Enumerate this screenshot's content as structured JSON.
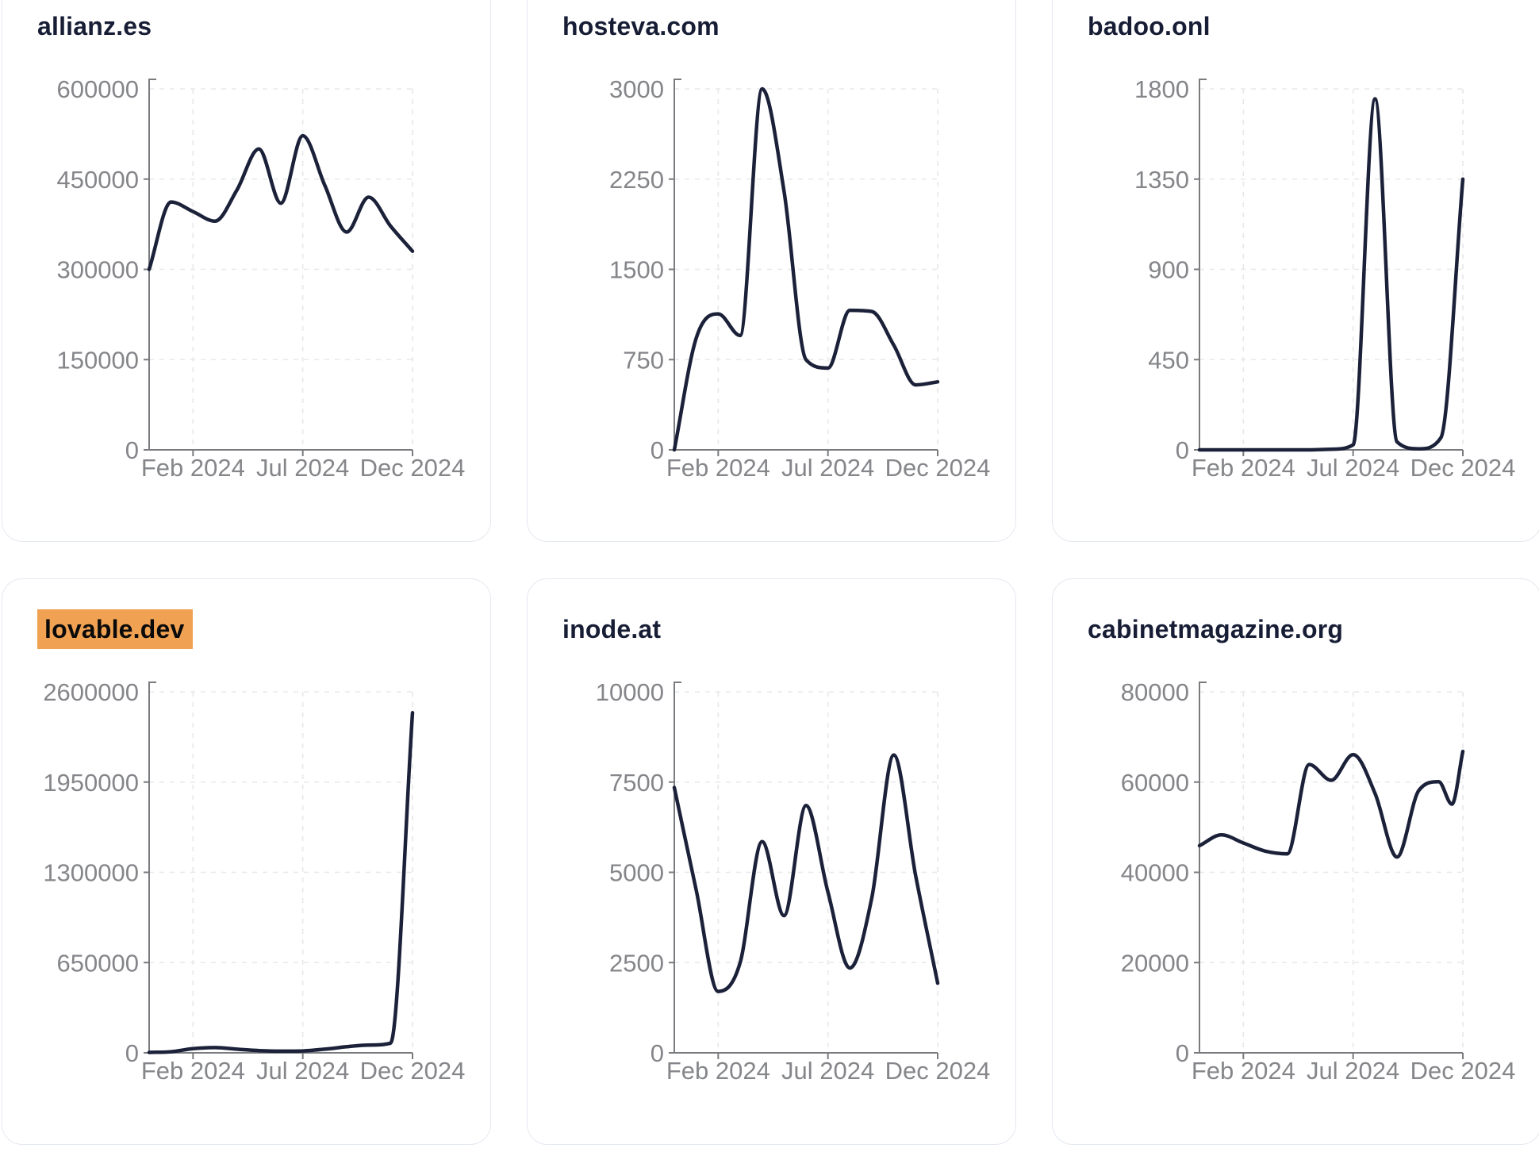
{
  "styles": {
    "line_color": "#1B2139",
    "title_color": "#171D35",
    "highlight_color": "#F0A252",
    "axis_color": "#7A7B7E",
    "tick_label_color": "#85868A",
    "gridline_color": "#E7E8EA",
    "card_border_color": "#E4E8F0",
    "background": "#ffffff"
  },
  "x_axis": {
    "start": "Dec 2023",
    "end": "Dec 2024",
    "tick_labels": [
      "Feb 2024",
      "Jul 2024",
      "Dec 2024"
    ],
    "tick_month_index": [
      2,
      7,
      12
    ],
    "x_unit": "months since Dec 2023 (0 = Dec 2023, 12 = Dec 2024)"
  },
  "chart_data": [
    {
      "type": "line",
      "title": "allianz.es",
      "highlighted": false,
      "ylim": [
        0,
        600000
      ],
      "y_ticks": [
        0,
        150000,
        300000,
        450000,
        600000
      ],
      "x_ticks": [
        "Feb 2024",
        "Jul 2024",
        "Dec 2024"
      ],
      "grid": true,
      "legend": "none",
      "points": [
        [
          0,
          300000
        ],
        [
          1,
          412000
        ],
        [
          2,
          396000
        ],
        [
          3,
          380000
        ],
        [
          4,
          432000
        ],
        [
          5,
          500000
        ],
        [
          6,
          410000
        ],
        [
          7,
          522000
        ],
        [
          8,
          440000
        ],
        [
          9,
          362000
        ],
        [
          10,
          420000
        ],
        [
          11,
          372000
        ],
        [
          12,
          330000
        ]
      ]
    },
    {
      "type": "line",
      "title": "hosteva.com",
      "highlighted": false,
      "ylim": [
        0,
        3000
      ],
      "y_ticks": [
        0,
        750,
        1500,
        2250,
        3000
      ],
      "x_ticks": [
        "Feb 2024",
        "Jul 2024",
        "Dec 2024"
      ],
      "grid": true,
      "legend": "none",
      "points": [
        [
          0,
          0
        ],
        [
          1,
          930
        ],
        [
          2,
          1130
        ],
        [
          3,
          950
        ],
        [
          4,
          3000
        ],
        [
          5,
          2150
        ],
        [
          6,
          750
        ],
        [
          7,
          680
        ],
        [
          8,
          1160
        ],
        [
          9,
          1150
        ],
        [
          10,
          870
        ],
        [
          11,
          540
        ],
        [
          12,
          565
        ]
      ]
    },
    {
      "type": "line",
      "title": "badoo.onl",
      "highlighted": false,
      "ylim": [
        0,
        1800
      ],
      "y_ticks": [
        0,
        450,
        900,
        1350,
        1800
      ],
      "x_ticks": [
        "Feb 2024",
        "Jul 2024",
        "Dec 2024"
      ],
      "grid": true,
      "legend": "none",
      "points": [
        [
          0,
          0
        ],
        [
          1,
          0
        ],
        [
          2,
          0
        ],
        [
          3,
          0
        ],
        [
          4,
          0
        ],
        [
          5,
          0
        ],
        [
          6,
          3
        ],
        [
          7,
          25
        ],
        [
          8,
          1750
        ],
        [
          9,
          40
        ],
        [
          10,
          5
        ],
        [
          11,
          60
        ],
        [
          12,
          1350
        ]
      ]
    },
    {
      "type": "line",
      "title": "lovable.dev",
      "highlighted": true,
      "ylim": [
        0,
        2600000
      ],
      "y_ticks": [
        0,
        650000,
        1300000,
        1950000,
        2600000
      ],
      "x_ticks": [
        "Feb 2024",
        "Jul 2024",
        "Dec 2024"
      ],
      "grid": true,
      "legend": "none",
      "points": [
        [
          0,
          3000
        ],
        [
          1,
          8000
        ],
        [
          2,
          30000
        ],
        [
          3,
          38000
        ],
        [
          4,
          26000
        ],
        [
          5,
          16000
        ],
        [
          6,
          12000
        ],
        [
          7,
          14000
        ],
        [
          8,
          26000
        ],
        [
          9,
          44000
        ],
        [
          10,
          56000
        ],
        [
          11,
          70000
        ],
        [
          12,
          2450000
        ]
      ]
    },
    {
      "type": "line",
      "title": "inode.at",
      "highlighted": false,
      "ylim": [
        0,
        10000
      ],
      "y_ticks": [
        0,
        2500,
        5000,
        7500,
        10000
      ],
      "x_ticks": [
        "Feb 2024",
        "Jul 2024",
        "Dec 2024"
      ],
      "grid": true,
      "legend": "none",
      "points": [
        [
          0,
          7350
        ],
        [
          1,
          4500
        ],
        [
          2,
          1700
        ],
        [
          3,
          2500
        ],
        [
          4,
          5850
        ],
        [
          5,
          3800
        ],
        [
          6,
          6850
        ],
        [
          7,
          4450
        ],
        [
          8,
          2350
        ],
        [
          9,
          4300
        ],
        [
          10,
          8250
        ],
        [
          11,
          4900
        ],
        [
          12,
          1930
        ]
      ]
    },
    {
      "type": "line",
      "title": "cabinetmagazine.org",
      "highlighted": false,
      "ylim": [
        0,
        80000
      ],
      "y_ticks": [
        0,
        20000,
        40000,
        60000,
        80000
      ],
      "x_ticks": [
        "Feb 2024",
        "Jul 2024",
        "Dec 2024"
      ],
      "grid": true,
      "legend": "none",
      "points": [
        [
          0,
          45900
        ],
        [
          1,
          48300
        ],
        [
          2,
          46500
        ],
        [
          3,
          44700
        ],
        [
          4,
          44100
        ],
        [
          5,
          63900
        ],
        [
          6,
          60400
        ],
        [
          7,
          66100
        ],
        [
          8,
          57500
        ],
        [
          9,
          43400
        ],
        [
          10,
          58200
        ],
        [
          10.9,
          60100
        ],
        [
          11.5,
          55100
        ],
        [
          12,
          66800
        ]
      ]
    }
  ]
}
